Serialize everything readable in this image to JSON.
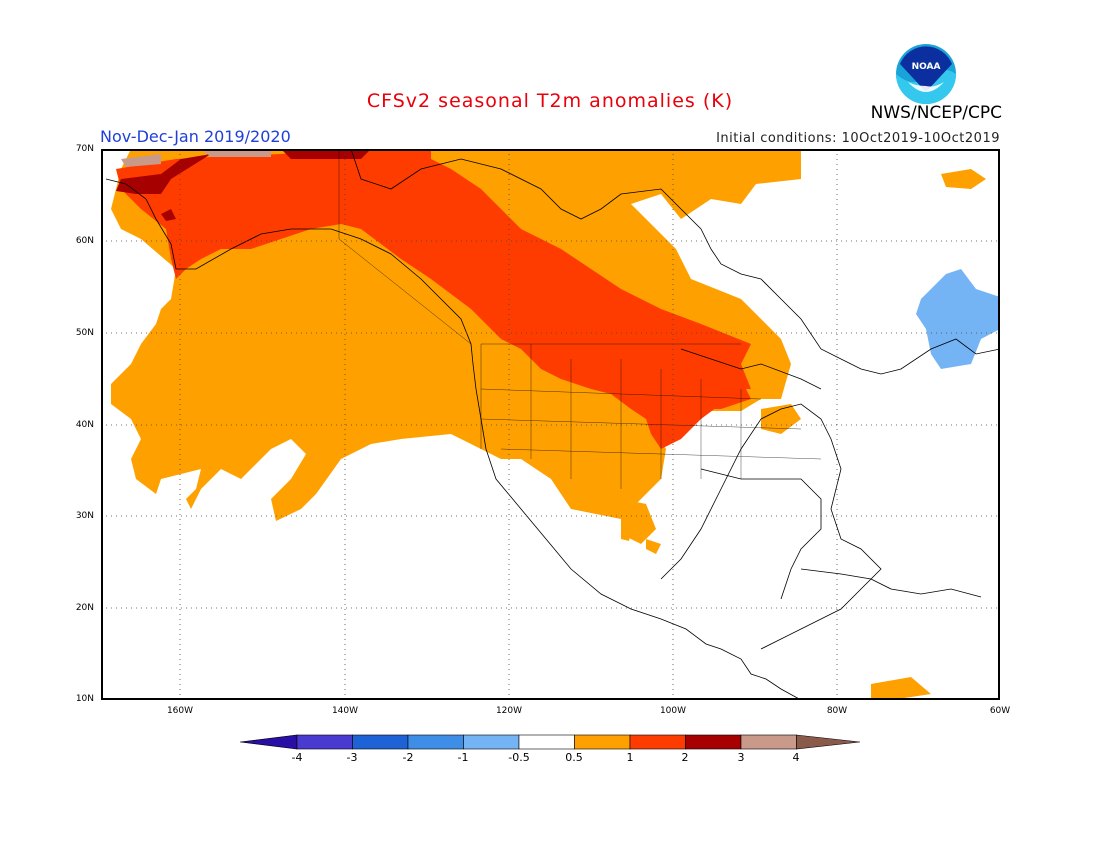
{
  "header": {
    "title": "CFSv2 seasonal T2m anomalies (K)",
    "period": "Nov-Dec-Jan 2019/2020",
    "initial_conditions": "Initial conditions: 10Oct2019-10Oct2019",
    "agency": "NWS/NCEP/CPC",
    "logo_text": "NOAA"
  },
  "map": {
    "lat_labels": [
      "70N",
      "60N",
      "50N",
      "40N",
      "30N",
      "20N",
      "10N"
    ],
    "lon_labels": [
      "160W",
      "140W",
      "120W",
      "100W",
      "80W",
      "60W"
    ],
    "grid": true
  },
  "colorbar": {
    "labels": [
      "-4",
      "-3",
      "-2",
      "-1",
      "-0.5",
      "0.5",
      "1",
      "2",
      "3",
      "4"
    ],
    "colors": [
      "#2a0fa6",
      "#4a3bd0",
      "#1d63d6",
      "#3e8ee8",
      "#74b4f5",
      "#ffffff",
      "#ffa001",
      "#ff3c00",
      "#a70000",
      "#c9998a",
      "#8a5a4a"
    ]
  },
  "colors": {
    "warm_low": "#ffa001",
    "warm_mid": "#ff3c00",
    "warm_high": "#a70000",
    "cool": "#74b4f5",
    "title_red": "#e8000b",
    "period_blue": "#1f3fd8"
  }
}
